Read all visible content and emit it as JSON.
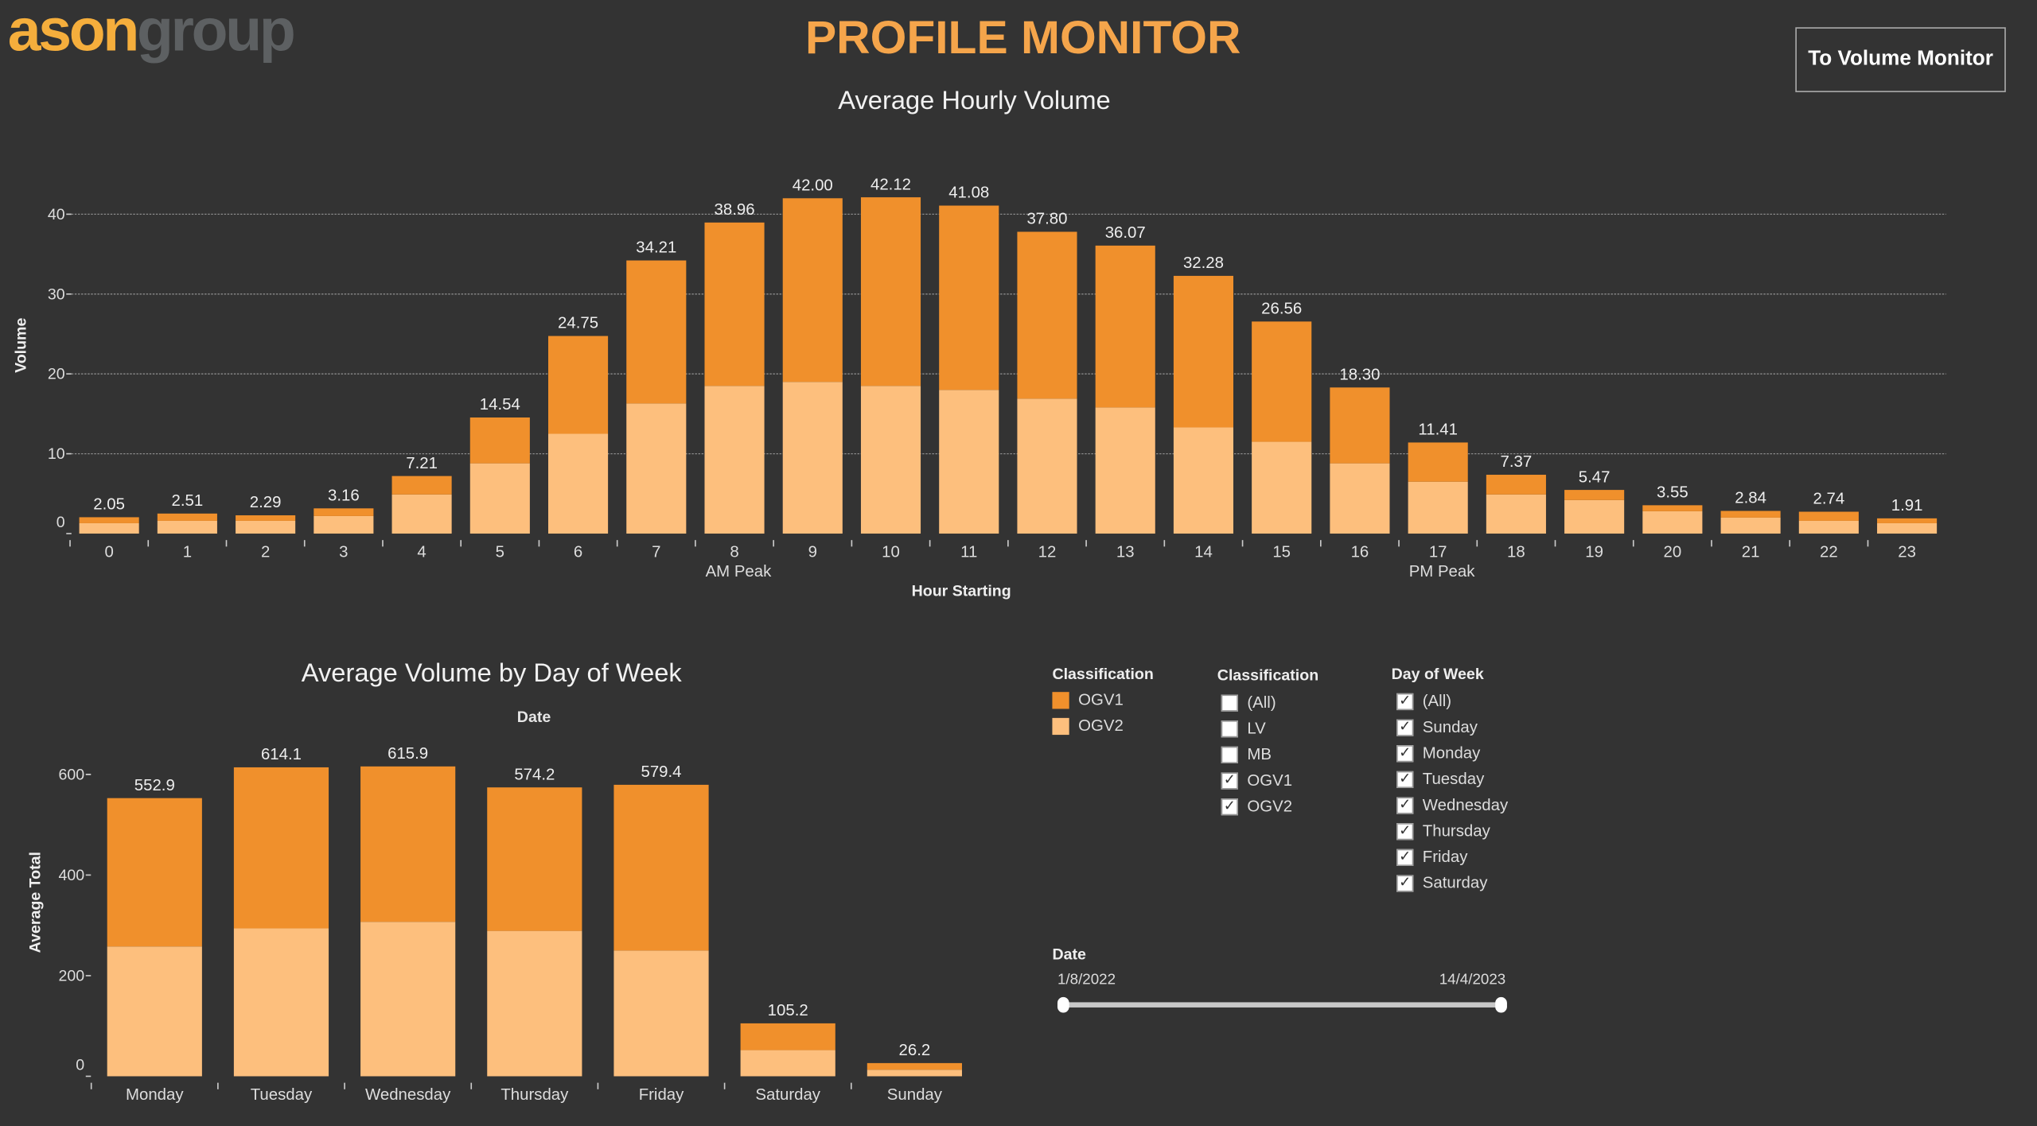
{
  "header": {
    "logo_part1": "ason",
    "logo_part2": "group",
    "title": "PROFILE MONITOR",
    "nav_button": "To Volume Monitor"
  },
  "colors": {
    "ogv1": "#f0902c",
    "ogv2": "#fdbf7d",
    "background": "#333333",
    "title": "#f5a54b"
  },
  "chart_data": [
    {
      "type": "bar",
      "stacked": true,
      "title": "Average Hourly Volume",
      "xlabel": "Hour Starting",
      "ylabel": "Volume",
      "ylim": [
        0,
        45
      ],
      "yticks": [
        0,
        10,
        20,
        30,
        40
      ],
      "grid": true,
      "categories": [
        "0",
        "1",
        "2",
        "3",
        "4",
        "5",
        "6",
        "7",
        "8",
        "9",
        "10",
        "11",
        "12",
        "13",
        "14",
        "15",
        "16",
        "17",
        "18",
        "19",
        "20",
        "21",
        "22",
        "23"
      ],
      "totals_labels": [
        "2.05",
        "2.51",
        "2.29",
        "3.16",
        "7.21",
        "14.54",
        "24.75",
        "34.21",
        "38.96",
        "42.00",
        "42.12",
        "41.08",
        "37.80",
        "36.07",
        "32.28",
        "26.56",
        "18.30",
        "11.41",
        "7.37",
        "5.47",
        "3.55",
        "2.84",
        "2.74",
        "1.91"
      ],
      "series": [
        {
          "name": "OGV2",
          "values": [
            1.3,
            1.6,
            1.6,
            2.2,
            4.9,
            8.8,
            12.5,
            16.3,
            18.5,
            19.0,
            18.5,
            18.0,
            16.9,
            15.8,
            13.3,
            11.5,
            8.8,
            6.5,
            4.9,
            4.2,
            2.8,
            2.0,
            1.6,
            1.3
          ]
        },
        {
          "name": "OGV1",
          "values": [
            0.75,
            0.91,
            0.69,
            0.96,
            2.31,
            5.74,
            12.25,
            17.91,
            20.46,
            23.0,
            23.62,
            23.08,
            20.9,
            20.27,
            18.98,
            15.06,
            9.5,
            4.91,
            2.47,
            1.27,
            0.75,
            0.84,
            1.14,
            0.61
          ]
        }
      ],
      "annotations": [
        {
          "category": "8",
          "text": "AM Peak"
        },
        {
          "category": "17",
          "text": "PM Peak"
        }
      ]
    },
    {
      "type": "bar",
      "stacked": true,
      "title": "Average Volume by Day of Week",
      "subtitle": "Date",
      "xlabel": "",
      "ylabel": "Average Total",
      "ylim": [
        0,
        650
      ],
      "yticks": [
        0,
        200,
        400,
        600
      ],
      "grid": false,
      "categories": [
        "Monday",
        "Tuesday",
        "Wednesday",
        "Thursday",
        "Friday",
        "Saturday",
        "Sunday"
      ],
      "totals_labels": [
        "552.9",
        "614.1",
        "615.9",
        "574.2",
        "579.4",
        "105.2",
        "26.2"
      ],
      "series": [
        {
          "name": "OGV2",
          "values": [
            258,
            294,
            307,
            289,
            250,
            52,
            13
          ]
        },
        {
          "name": "OGV1",
          "values": [
            294.9,
            320.1,
            308.9,
            285.2,
            329.4,
            53.2,
            13.2
          ]
        }
      ]
    }
  ],
  "legend": {
    "title": "Classification",
    "items": [
      {
        "label": "OGV1",
        "color": "#f0902c"
      },
      {
        "label": "OGV2",
        "color": "#fdbf7d"
      }
    ]
  },
  "filter_classification": {
    "title": "Classification",
    "items": [
      {
        "label": "(All)",
        "checked": false
      },
      {
        "label": "LV",
        "checked": false
      },
      {
        "label": "MB",
        "checked": false
      },
      {
        "label": "OGV1",
        "checked": true
      },
      {
        "label": "OGV2",
        "checked": true
      }
    ]
  },
  "filter_day": {
    "title": "Day of Week",
    "items": [
      {
        "label": "(All)",
        "checked": true
      },
      {
        "label": "Sunday",
        "checked": true
      },
      {
        "label": "Monday",
        "checked": true
      },
      {
        "label": "Tuesday",
        "checked": true
      },
      {
        "label": "Wednesday",
        "checked": true
      },
      {
        "label": "Thursday",
        "checked": true
      },
      {
        "label": "Friday",
        "checked": true
      },
      {
        "label": "Saturday",
        "checked": true
      }
    ]
  },
  "date_filter": {
    "title": "Date",
    "start": "1/8/2022",
    "end": "14/4/2023"
  }
}
